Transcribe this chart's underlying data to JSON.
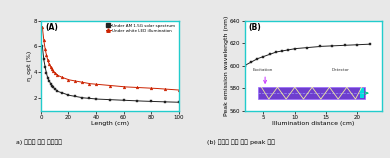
{
  "panel_A": {
    "label": "(A)",
    "xlabel": "Length (cm)",
    "ylabel": "η_opt (%)",
    "xlim": [
      0,
      100
    ],
    "ylim": [
      1,
      8
    ],
    "yticks": [
      2,
      4,
      6,
      8
    ],
    "xticks": [
      0,
      20,
      40,
      60,
      80,
      100
    ],
    "bg_color": "#ffffff",
    "border_color": "#22cccc",
    "series": [
      {
        "name": "Under AM 1.5G solar spectrum",
        "color": "#222222",
        "marker": "s",
        "x": [
          1,
          2,
          3,
          4,
          5,
          6,
          7,
          8,
          9,
          10,
          12,
          15,
          20,
          25,
          30,
          35,
          40,
          50,
          60,
          70,
          80,
          90,
          100
        ],
        "y": [
          6.0,
          5.0,
          4.4,
          3.9,
          3.5,
          3.3,
          3.1,
          2.9,
          2.8,
          2.7,
          2.5,
          2.4,
          2.2,
          2.1,
          2.0,
          1.95,
          1.9,
          1.85,
          1.8,
          1.75,
          1.72,
          1.68,
          1.65
        ]
      },
      {
        "name": "Under white LED illumination",
        "color": "#cc2200",
        "marker": "^",
        "x": [
          1,
          2,
          3,
          4,
          5,
          6,
          7,
          8,
          9,
          10,
          12,
          15,
          20,
          25,
          30,
          35,
          40,
          50,
          60,
          70,
          80,
          90,
          100
        ],
        "y": [
          7.5,
          6.5,
          5.8,
          5.3,
          4.9,
          4.6,
          4.4,
          4.2,
          4.05,
          3.95,
          3.75,
          3.6,
          3.4,
          3.3,
          3.2,
          3.1,
          3.05,
          2.95,
          2.85,
          2.8,
          2.75,
          2.68,
          2.6
        ]
      }
    ]
  },
  "panel_B": {
    "label": "(B)",
    "xlabel": "Illumination distance (cm)",
    "ylabel": "Peak emission wavelength (nm)",
    "xlim": [
      2,
      24
    ],
    "ylim": [
      560,
      640
    ],
    "yticks": [
      560,
      580,
      600,
      620,
      640
    ],
    "xticks": [
      5,
      10,
      15,
      20
    ],
    "bg_color": "#ffffff",
    "border_color": "#22cccc",
    "x": [
      2,
      3,
      4,
      5,
      6,
      7,
      8,
      9,
      10,
      12,
      14,
      16,
      18,
      20,
      22
    ],
    "y": [
      600,
      603,
      606,
      608,
      610,
      612,
      613,
      614,
      615,
      616,
      617,
      617.5,
      618,
      618.5,
      619
    ],
    "color": "#222222",
    "marker": "s",
    "inset": {
      "excitation_label": "Excitation",
      "detector_label": "Detector",
      "plate_color": "#6633cc",
      "excitation_arrow_color": "#cc44ff",
      "detector_arrow_color": "#00cc88",
      "zigzag_color": "#ffff99",
      "dashed_color": "#aaaaff"
    }
  },
  "caption_a": "a) 길이에 따른 광학효율",
  "caption_b": "(b) 길이에 따른 발광 peak 주이",
  "fig_bg_color": "#e8e8e8"
}
